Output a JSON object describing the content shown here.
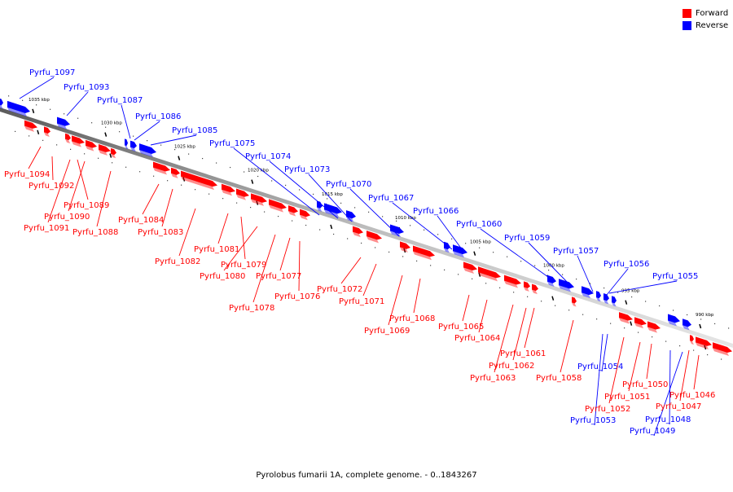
{
  "legend": {
    "forward_label": "Forward",
    "reverse_label": "Reverse",
    "forward_color": "#ff0000",
    "reverse_color": "#0000ff"
  },
  "caption": "Pyrolobus fumarii 1A, complete genome. - 0..1843267",
  "ruler_ticks": [
    "1035 kbp",
    "1030 kbp",
    "1025 kbp",
    "1020 kbp",
    "1015 kbp",
    "1010 kbp",
    "1005 kbp",
    "1000 kbp",
    "995 kbp",
    "990 kbp"
  ],
  "genes": [
    {
      "label": "Pyrfu_1097",
      "strand": "reverse"
    },
    {
      "label": "Pyrfu_1093",
      "strand": "reverse"
    },
    {
      "label": "Pyrfu_1087",
      "strand": "reverse"
    },
    {
      "label": "Pyrfu_1086",
      "strand": "reverse"
    },
    {
      "label": "Pyrfu_1085",
      "strand": "reverse"
    },
    {
      "label": "Pyrfu_1075",
      "strand": "reverse"
    },
    {
      "label": "Pyrfu_1074",
      "strand": "reverse"
    },
    {
      "label": "Pyrfu_1073",
      "strand": "reverse"
    },
    {
      "label": "Pyrfu_1070",
      "strand": "reverse"
    },
    {
      "label": "Pyrfu_1067",
      "strand": "reverse"
    },
    {
      "label": "Pyrfu_1066",
      "strand": "reverse"
    },
    {
      "label": "Pyrfu_1060",
      "strand": "reverse"
    },
    {
      "label": "Pyrfu_1059",
      "strand": "reverse"
    },
    {
      "label": "Pyrfu_1057",
      "strand": "reverse"
    },
    {
      "label": "Pyrfu_1056",
      "strand": "reverse"
    },
    {
      "label": "Pyrfu_1055",
      "strand": "reverse"
    },
    {
      "label": "Pyrfu_1054",
      "strand": "reverse"
    },
    {
      "label": "Pyrfu_1053",
      "strand": "reverse"
    },
    {
      "label": "Pyrfu_1048",
      "strand": "reverse"
    },
    {
      "label": "Pyrfu_1049",
      "strand": "reverse"
    },
    {
      "label": "Pyrfu_1094",
      "strand": "forward"
    },
    {
      "label": "Pyrfu_1092",
      "strand": "forward"
    },
    {
      "label": "Pyrfu_1089",
      "strand": "forward"
    },
    {
      "label": "Pyrfu_1090",
      "strand": "forward"
    },
    {
      "label": "Pyrfu_1091",
      "strand": "forward"
    },
    {
      "label": "Pyrfu_1088",
      "strand": "forward"
    },
    {
      "label": "Pyrfu_1084",
      "strand": "forward"
    },
    {
      "label": "Pyrfu_1083",
      "strand": "forward"
    },
    {
      "label": "Pyrfu_1082",
      "strand": "forward"
    },
    {
      "label": "Pyrfu_1081",
      "strand": "forward"
    },
    {
      "label": "Pyrfu_1079",
      "strand": "forward"
    },
    {
      "label": "Pyrfu_1080",
      "strand": "forward"
    },
    {
      "label": "Pyrfu_1077",
      "strand": "forward"
    },
    {
      "label": "Pyrfu_1076",
      "strand": "forward"
    },
    {
      "label": "Pyrfu_1078",
      "strand": "forward"
    },
    {
      "label": "Pyrfu_1072",
      "strand": "forward"
    },
    {
      "label": "Pyrfu_1071",
      "strand": "forward"
    },
    {
      "label": "Pyrfu_1068",
      "strand": "forward"
    },
    {
      "label": "Pyrfu_1069",
      "strand": "forward"
    },
    {
      "label": "Pyrfu_1065",
      "strand": "forward"
    },
    {
      "label": "Pyrfu_1064",
      "strand": "forward"
    },
    {
      "label": "Pyrfu_1061",
      "strand": "forward"
    },
    {
      "label": "Pyrfu_1062",
      "strand": "forward"
    },
    {
      "label": "Pyrfu_1063",
      "strand": "forward"
    },
    {
      "label": "Pyrfu_1058",
      "strand": "forward"
    },
    {
      "label": "Pyrfu_1050",
      "strand": "forward"
    },
    {
      "label": "Pyrfu_1051",
      "strand": "forward"
    },
    {
      "label": "Pyrfu_1052",
      "strand": "forward"
    },
    {
      "label": "Pyrfu_1046",
      "strand": "forward"
    },
    {
      "label": "Pyrfu_1047",
      "strand": "forward"
    }
  ]
}
